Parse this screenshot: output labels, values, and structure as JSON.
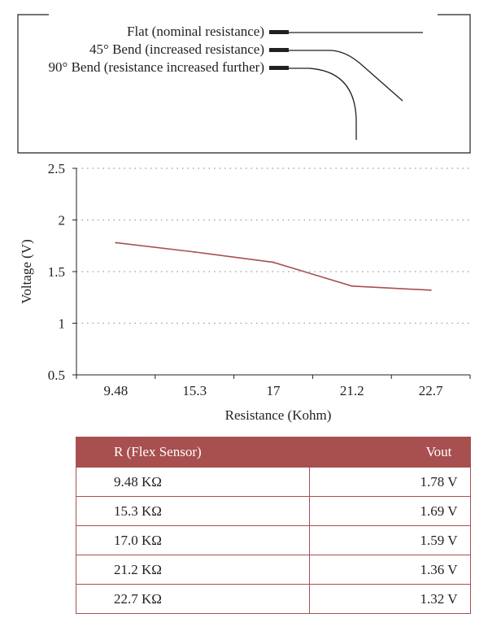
{
  "diagram": {
    "labels": [
      "Flat (nominal resistance)",
      "45° Bend (increased resistance)",
      "90° Bend (resistance increased further)"
    ]
  },
  "colors": {
    "line": "#a84f4f",
    "header_bg": "#a84f4f",
    "text": "#231f20"
  },
  "chart_data": {
    "type": "line",
    "categories": [
      "9.48",
      "15.3",
      "17",
      "21.2",
      "22.7"
    ],
    "series": [
      {
        "values": [
          1.78,
          1.69,
          1.59,
          1.36,
          1.32
        ]
      }
    ],
    "xlabel": "Resistance (Kohm)",
    "ylabel": "Voltage (V)",
    "ylim": [
      0.5,
      2.5
    ],
    "yticks": [
      "2.5",
      "2",
      "1.5",
      "1",
      "0.5"
    ],
    "grid": "horizontal dotted"
  },
  "table": {
    "headers": [
      "R (Flex Sensor)",
      "Vout"
    ],
    "rows": [
      [
        "9.48 KΩ",
        "1.78 V"
      ],
      [
        "15.3 KΩ",
        "1.69 V"
      ],
      [
        "17.0 KΩ",
        "1.59 V"
      ],
      [
        "21.2 KΩ",
        "1.36 V"
      ],
      [
        "22.7 KΩ",
        "1.32 V"
      ]
    ]
  }
}
